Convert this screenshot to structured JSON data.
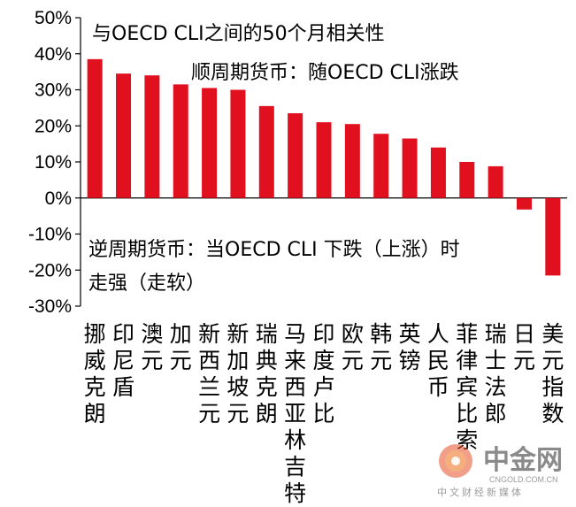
{
  "chart_data": {
    "type": "bar",
    "categories": [
      "挪威克朗",
      "印尼盾",
      "澳元",
      "加元",
      "新西兰元",
      "新加坡元",
      "瑞典克朗",
      "马来西亚林吉特",
      "印度卢比",
      "欧元",
      "韩元",
      "英镑",
      "人民币",
      "菲律宾比索",
      "瑞士法郎",
      "日元",
      "美元指数"
    ],
    "values": [
      0.385,
      0.345,
      0.34,
      0.315,
      0.305,
      0.3,
      0.255,
      0.235,
      0.21,
      0.205,
      0.178,
      0.165,
      0.14,
      0.1,
      0.088,
      -0.032,
      -0.215
    ],
    "ylim": [
      -0.3,
      0.5
    ],
    "yticks": [
      "50%",
      "40%",
      "30%",
      "20%",
      "10%",
      "0%",
      "-10%",
      "-20%",
      "-30%"
    ],
    "bar_color": "#e0101e",
    "annotations": {
      "title": "与OECD CLI之间的50个月相关性",
      "pro_cyclical": "顺周期货币：随OECD CLI涨跌",
      "counter_cyclical_line1": "逆周期货币：当OECD CLI 下跌（上涨）时",
      "counter_cyclical_line2": "走强（走软）"
    },
    "grid": false
  },
  "watermark": {
    "name": "中金网",
    "domain": "CNGOLD.COM.CN",
    "tagline": "中文财经新媒体",
    "logo_color": "#e8502a"
  }
}
